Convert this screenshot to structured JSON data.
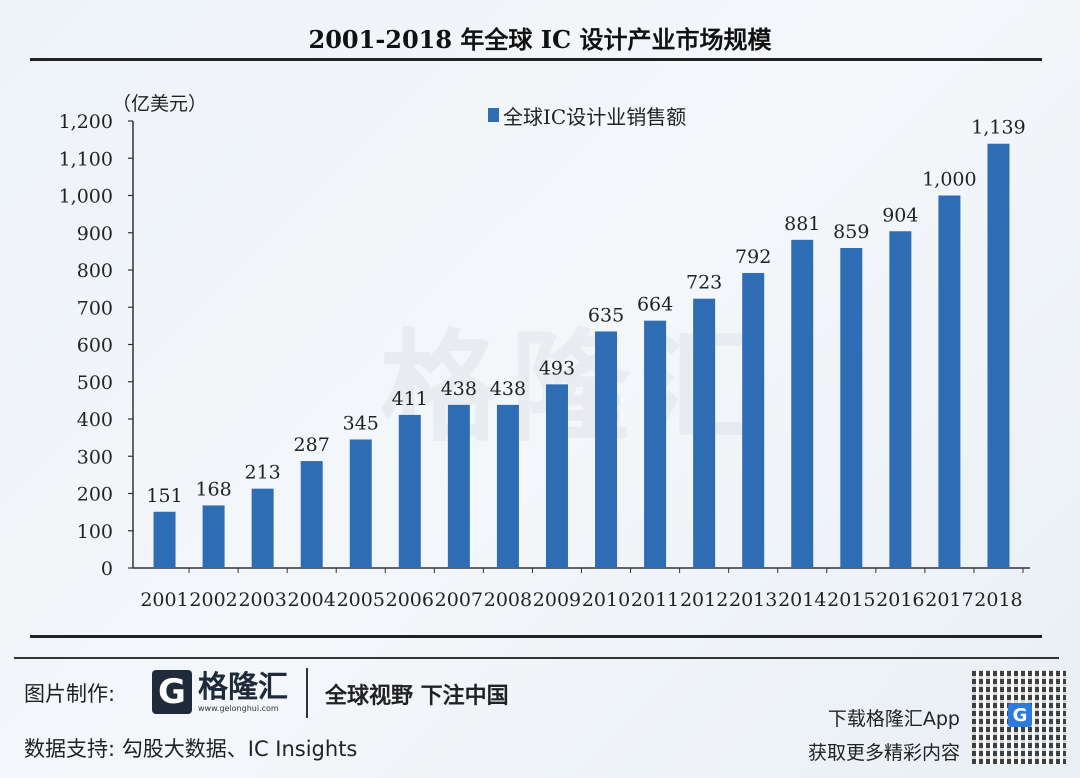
{
  "chart_data": {
    "type": "bar",
    "title": "2001-2018 年全球 IC 设计产业市场规模",
    "ylabel": "（亿美元）",
    "xlabel": "",
    "categories": [
      "2001",
      "2002",
      "2003",
      "2004",
      "2005",
      "2006",
      "2007",
      "2008",
      "2009",
      "2010",
      "2011",
      "2012",
      "2013",
      "2014",
      "2015",
      "2016",
      "2017",
      "2018"
    ],
    "series": [
      {
        "name": "全球IC设计业销售额",
        "values": [
          151,
          168,
          213,
          287,
          345,
          411,
          438,
          438,
          493,
          635,
          664,
          723,
          792,
          881,
          859,
          904,
          1000,
          1139
        ],
        "color": "#2e6db4"
      }
    ],
    "data_labels": [
      "151",
      "168",
      "213",
      "287",
      "345",
      "411",
      "438",
      "438",
      "493",
      "635",
      "664",
      "723",
      "792",
      "881",
      "859",
      "904",
      "1,000",
      "1,139"
    ],
    "ylim": [
      0,
      1200
    ],
    "yticks": [
      0,
      100,
      200,
      300,
      400,
      500,
      600,
      700,
      800,
      900,
      1000,
      1100,
      1200
    ],
    "ytick_labels": [
      "0",
      "100",
      "200",
      "300",
      "400",
      "500",
      "600",
      "700",
      "800",
      "900",
      "1,000",
      "1,100",
      "1,200"
    ],
    "legend_position": "top-center",
    "grid": false
  },
  "watermark": "格隆汇",
  "footer": {
    "made_by_label": "图片制作:",
    "logo_name": "格隆汇",
    "logo_url": "www.gelonghui.com",
    "slogan": "全球视野 下注中国",
    "data_support": "数据支持: 勾股大数据、IC Insights",
    "app_line1": "下载格隆汇App",
    "app_line2": "获取更多精彩内容"
  }
}
